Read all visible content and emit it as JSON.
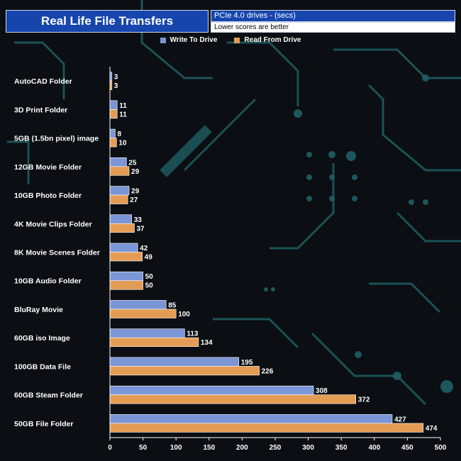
{
  "header": {
    "title": "Real Life File Transfers",
    "subtitle": "PCIe 4.0 drives - (secs)",
    "note": "Lower scores are better"
  },
  "colors": {
    "write": "#7b96d6",
    "read": "#e49c55",
    "title_bg": "#1646ad"
  },
  "chart_data": {
    "type": "bar",
    "orientation": "horizontal",
    "categories": [
      "AutoCAD Folder",
      "3D Print Folder",
      "5GB (1.5bn pixel) image",
      "12GB Movie Folder",
      "10GB Photo Folder",
      "4K Movie Clips Folder",
      "8K Movie Scenes Folder",
      "10GB Audio Folder",
      "BluRay Movie",
      "60GB iso Image",
      "100GB Data File",
      "60GB Steam Folder",
      "50GB File Folder"
    ],
    "series": [
      {
        "name": "Write To  Drive",
        "values": [
          3,
          11,
          8,
          25,
          29,
          33,
          42,
          50,
          85,
          113,
          195,
          308,
          427
        ]
      },
      {
        "name": "Read From  Drive",
        "values": [
          3,
          11,
          10,
          29,
          27,
          37,
          49,
          50,
          100,
          134,
          226,
          372,
          474
        ]
      }
    ],
    "xlim": [
      0,
      500
    ],
    "xticks": [
      "0",
      "50",
      "100",
      "150",
      "200",
      "250",
      "300",
      "350",
      "400",
      "450",
      "500"
    ],
    "legend": "top-center"
  }
}
